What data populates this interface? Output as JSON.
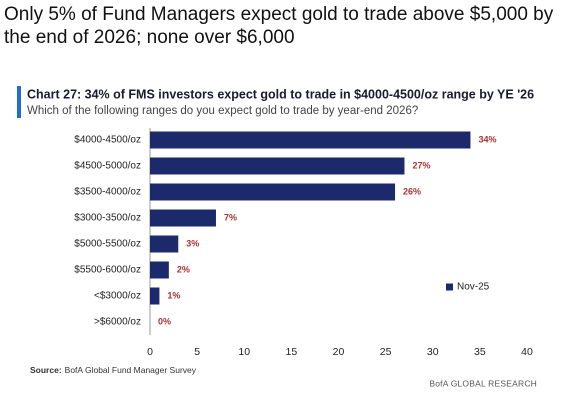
{
  "headline": [
    "Only 5% of Fund Managers expect gold to trade above $5,000 by",
    "the end of 2026; none over $6,000"
  ],
  "chart_data": {
    "type": "bar",
    "orientation": "horizontal",
    "title": "Chart 27: 34% of FMS investors expect gold to trade in $4000-4500/oz range by YE '26",
    "subtitle": "Which of the following ranges do you expect gold to trade by year-end 2026?",
    "categories": [
      "$4000-4500/oz",
      "$4500-5000/oz",
      "$3500-4000/oz",
      "$3000-3500/oz",
      "$5000-5500/oz",
      "$5500-6000/oz",
      "<$3000/oz",
      ">$6000/oz"
    ],
    "series": [
      {
        "name": "Nov-25",
        "color": "#1c2a6b",
        "values": [
          34,
          27,
          26,
          7,
          3,
          2,
          1,
          0
        ],
        "value_labels": [
          "34%",
          "27%",
          "26%",
          "7%",
          "3%",
          "2%",
          "1%",
          "0%"
        ]
      }
    ],
    "xlim": [
      0,
      40
    ],
    "xticks": [
      0,
      5,
      10,
      15,
      20,
      25,
      30,
      35,
      40
    ],
    "grid": false,
    "legend": "right",
    "source_label": "Source:",
    "source": "BofA Global Fund Manager Survey",
    "footer": "BofA GLOBAL RESEARCH"
  }
}
